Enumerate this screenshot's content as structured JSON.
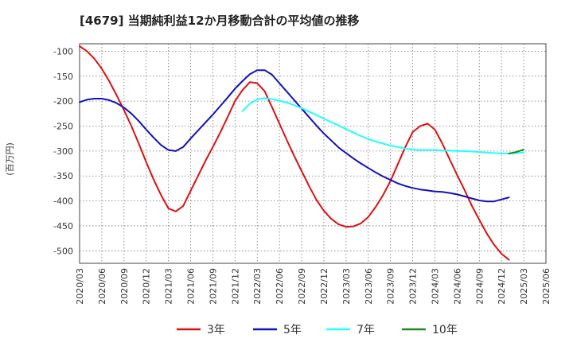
{
  "chart_data": {
    "type": "line",
    "title": "[4679]  当期純利益12か月移動合計の平均値の推移",
    "ylabel": "(百万円)",
    "xlabel": "",
    "ylim": [
      -525,
      -85
    ],
    "yticks": [
      -100,
      -150,
      -200,
      -250,
      -300,
      -350,
      -400,
      -450,
      -500
    ],
    "x_ticks": [
      "2020/03",
      "2020/06",
      "2020/09",
      "2020/12",
      "2021/03",
      "2021/06",
      "2021/09",
      "2021/12",
      "2022/03",
      "2022/06",
      "2022/09",
      "2022/12",
      "2023/03",
      "2023/06",
      "2023/09",
      "2023/12",
      "2024/03",
      "2024/06",
      "2024/09",
      "2024/12",
      "2025/03",
      "2025/06"
    ],
    "grid": true,
    "legend_position": "bottom",
    "series": [
      {
        "name": "3年",
        "color": "#dd1111",
        "x": [
          "2020/03",
          "2020/04",
          "2020/05",
          "2020/06",
          "2020/07",
          "2020/08",
          "2020/09",
          "2020/10",
          "2020/11",
          "2020/12",
          "2021/01",
          "2021/02",
          "2021/03",
          "2021/04",
          "2021/05",
          "2021/06",
          "2021/07",
          "2021/08",
          "2021/09",
          "2021/10",
          "2021/11",
          "2021/12",
          "2022/01",
          "2022/02",
          "2022/03",
          "2022/04",
          "2022/05",
          "2022/06",
          "2022/07",
          "2022/08",
          "2022/09",
          "2022/10",
          "2022/11",
          "2022/12",
          "2023/01",
          "2023/02",
          "2023/03",
          "2023/04",
          "2023/05",
          "2023/06",
          "2023/07",
          "2023/08",
          "2023/09",
          "2023/10",
          "2023/11",
          "2023/12",
          "2024/01",
          "2024/02",
          "2024/03",
          "2024/04",
          "2024/05",
          "2024/06",
          "2024/07",
          "2024/08",
          "2024/09",
          "2024/10",
          "2024/11",
          "2024/12",
          "2025/01",
          "2025/02",
          "2025/03"
        ],
        "y": [
          -90,
          -100,
          -115,
          -135,
          -160,
          -188,
          -218,
          -250,
          -285,
          -322,
          -357,
          -388,
          -415,
          -421,
          -410,
          -380,
          -350,
          -320,
          -292,
          -263,
          -232,
          -200,
          -178,
          -162,
          -164,
          -180,
          -212,
          -245,
          -278,
          -310,
          -340,
          -370,
          -398,
          -420,
          -436,
          -447,
          -452,
          -451,
          -445,
          -432,
          -412,
          -388,
          -360,
          -326,
          -292,
          -262,
          -250,
          -245,
          -257,
          -285,
          -317,
          -348,
          -378,
          -410,
          -438,
          -465,
          -488,
          -506,
          -518,
          null,
          null
        ],
        "y_note": ""
      },
      {
        "name": "5年",
        "color": "#1111bb",
        "x": [
          "2020/03",
          "2020/04",
          "2020/05",
          "2020/06",
          "2020/07",
          "2020/08",
          "2020/09",
          "2020/10",
          "2020/11",
          "2020/12",
          "2021/01",
          "2021/02",
          "2021/03",
          "2021/04",
          "2021/05",
          "2021/06",
          "2021/07",
          "2021/08",
          "2021/09",
          "2021/10",
          "2021/11",
          "2021/12",
          "2022/01",
          "2022/02",
          "2022/03",
          "2022/04",
          "2022/05",
          "2022/06",
          "2022/07",
          "2022/08",
          "2022/09",
          "2022/10",
          "2022/11",
          "2022/12",
          "2023/01",
          "2023/02",
          "2023/03",
          "2023/04",
          "2023/05",
          "2023/06",
          "2023/07",
          "2023/08",
          "2023/09",
          "2023/10",
          "2023/11",
          "2023/12",
          "2024/01",
          "2024/02",
          "2024/03",
          "2024/04",
          "2024/05",
          "2024/06",
          "2024/07",
          "2024/08",
          "2024/09",
          "2024/10",
          "2024/11",
          "2024/12",
          "2025/01",
          "2025/02",
          "2025/03"
        ],
        "y": [
          -202,
          -197,
          -195,
          -195,
          -198,
          -204,
          -213,
          -225,
          -240,
          -257,
          -273,
          -288,
          -298,
          -300,
          -292,
          -275,
          -259,
          -243,
          -227,
          -210,
          -193,
          -175,
          -160,
          -146,
          -138,
          -138,
          -147,
          -164,
          -181,
          -198,
          -215,
          -232,
          -249,
          -265,
          -279,
          -293,
          -304,
          -315,
          -325,
          -334,
          -343,
          -351,
          -358,
          -365,
          -370,
          -374,
          -377,
          -379,
          -381,
          -382,
          -384,
          -387,
          -391,
          -395,
          -399,
          -401,
          -401,
          -397,
          -393,
          null,
          null
        ]
      },
      {
        "name": "7年",
        "color": "#22ffff",
        "x": [
          "2022/01",
          "2022/02",
          "2022/03",
          "2022/04",
          "2022/05",
          "2022/06",
          "2022/07",
          "2022/08",
          "2022/09",
          "2022/10",
          "2022/11",
          "2022/12",
          "2023/01",
          "2023/02",
          "2023/03",
          "2023/04",
          "2023/05",
          "2023/06",
          "2023/07",
          "2023/08",
          "2023/09",
          "2023/10",
          "2023/11",
          "2023/12",
          "2024/01",
          "2024/02",
          "2024/03",
          "2024/04",
          "2024/05",
          "2024/06",
          "2024/07",
          "2024/08",
          "2024/09",
          "2024/10",
          "2024/11",
          "2024/12",
          "2025/01",
          "2025/02",
          "2025/03"
        ],
        "y": [
          -220,
          -205,
          -197,
          -194,
          -196,
          -199,
          -203,
          -208,
          -214,
          -221,
          -228,
          -235,
          -242,
          -249,
          -256,
          -263,
          -270,
          -276,
          -281,
          -285,
          -289,
          -292,
          -295,
          -297,
          -298,
          -298,
          -298,
          -299,
          -299,
          -300,
          -300,
          -301,
          -302,
          -303,
          -304,
          -305,
          -305,
          -304,
          -303
        ]
      },
      {
        "name": "10年",
        "color": "#228822",
        "x": [
          "2025/01",
          "2025/02",
          "2025/03"
        ],
        "y": [
          -305,
          -302,
          -297
        ]
      }
    ]
  }
}
